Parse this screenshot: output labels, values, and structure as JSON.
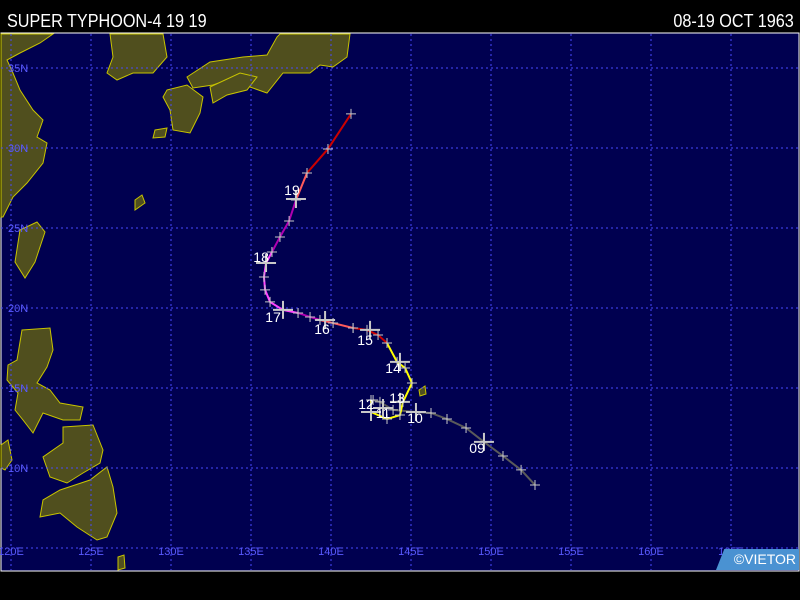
{
  "header": {
    "title": "SUPER TYPHOON-4 19 19",
    "dates": "08-19 OCT 1963"
  },
  "credit": "©VIETOR",
  "colors": {
    "ocean": "#000050",
    "land": "#504f1e",
    "coast": "#c8c400",
    "grid": "#4848ff"
  },
  "map": {
    "lon_range": [
      119.4,
      169.3
    ],
    "lat_range": [
      3.6,
      36.9
    ],
    "lat_labels": [
      {
        "lat": 35,
        "text": "35N"
      },
      {
        "lat": 30,
        "text": "30N"
      },
      {
        "lat": 25,
        "text": "25N"
      },
      {
        "lat": 20,
        "text": "20N"
      },
      {
        "lat": 15,
        "text": "15N"
      },
      {
        "lat": 10,
        "text": "10N"
      }
    ],
    "lon_labels": [
      {
        "lon": 120,
        "text": "120E"
      },
      {
        "lon": 125,
        "text": "125E"
      },
      {
        "lon": 130,
        "text": "130E"
      },
      {
        "lon": 135,
        "text": "135E"
      },
      {
        "lon": 140,
        "text": "140E"
      },
      {
        "lon": 145,
        "text": "145E"
      },
      {
        "lon": 150,
        "text": "150E"
      },
      {
        "lon": 155,
        "text": "155E"
      },
      {
        "lon": 160,
        "text": "160E"
      },
      {
        "lon": 165,
        "text": "165E"
      }
    ],
    "grid_lats": [
      5,
      10,
      15,
      20,
      25,
      30,
      35
    ],
    "grid_lons": [
      120,
      125,
      130,
      135,
      140,
      145,
      150,
      155,
      160,
      165
    ]
  },
  "track": {
    "segments": [
      {
        "color": "#5a5a5a",
        "points": [
          [
            152.75,
            8.94
          ],
          [
            151.88,
            9.88
          ],
          [
            150.75,
            10.75
          ],
          [
            149.56,
            11.63
          ],
          [
            148.44,
            12.5
          ],
          [
            147.25,
            13.06
          ],
          [
            146.25,
            13.44
          ],
          [
            145.31,
            13.5
          ],
          [
            143.88,
            13.63
          ],
          [
            143.06,
            14.13
          ],
          [
            142.63,
            14.25
          ]
        ]
      },
      {
        "color": "#ffff00",
        "points": [
          [
            142.5,
            14.25
          ],
          [
            142.5,
            13.5
          ],
          [
            143.5,
            13.06
          ],
          [
            144.31,
            13.31
          ],
          [
            144.5,
            14.13
          ],
          [
            145.06,
            15.31
          ],
          [
            144.63,
            16.25
          ],
          [
            144.13,
            16.63
          ],
          [
            143.5,
            17.81
          ]
        ]
      },
      {
        "color": "#cc0000",
        "points": [
          [
            143.5,
            17.81
          ],
          [
            142.94,
            18.31
          ],
          [
            142.25,
            18.63
          ],
          [
            141.38,
            18.75
          ]
        ]
      },
      {
        "color": "#ff5a5a",
        "points": [
          [
            141.38,
            18.75
          ],
          [
            140.13,
            19.06
          ],
          [
            139.31,
            19.25
          ]
        ]
      },
      {
        "color": "#b000b0",
        "points": [
          [
            139.31,
            19.25
          ],
          [
            138.69,
            19.44
          ],
          [
            137.94,
            19.69
          ]
        ]
      },
      {
        "color": "#ff44ff",
        "points": [
          [
            137.94,
            19.69
          ],
          [
            137.0,
            19.88
          ],
          [
            136.19,
            20.38
          ],
          [
            135.88,
            21.13
          ],
          [
            135.81,
            21.94
          ],
          [
            135.94,
            22.81
          ],
          [
            136.31,
            23.5
          ]
        ]
      },
      {
        "color": "#b000b0",
        "points": [
          [
            136.31,
            23.5
          ],
          [
            136.81,
            24.44
          ],
          [
            137.38,
            25.44
          ],
          [
            137.81,
            26.75
          ]
        ]
      },
      {
        "color": "#ff5a5a",
        "points": [
          [
            137.81,
            26.75
          ],
          [
            138.5,
            28.44
          ]
        ]
      },
      {
        "color": "#cc0000",
        "points": [
          [
            138.5,
            28.44
          ],
          [
            139.81,
            29.94
          ],
          [
            141.25,
            32.13
          ]
        ]
      }
    ],
    "day_markers": [
      [
        149.56,
        11.63
      ],
      [
        145.31,
        13.5
      ],
      [
        143.25,
        13.75
      ],
      [
        142.5,
        13.5
      ],
      [
        144.31,
        14.13
      ],
      [
        144.31,
        16.63
      ],
      [
        142.44,
        18.63
      ],
      [
        139.63,
        19.25
      ],
      [
        137.0,
        19.88
      ],
      [
        135.94,
        22.81
      ],
      [
        137.81,
        26.81
      ]
    ],
    "day_labels": [
      {
        "text": "09",
        "lon": 149.13,
        "lat": 11.25
      },
      {
        "text": "10",
        "lon": 145.25,
        "lat": 13.13
      },
      {
        "text": "11",
        "lon": 143.25,
        "lat": 13.44
      },
      {
        "text": "12",
        "lon": 142.19,
        "lat": 14.0
      },
      {
        "text": "13",
        "lon": 144.13,
        "lat": 14.38
      },
      {
        "text": "14",
        "lon": 143.88,
        "lat": 16.25
      },
      {
        "text": "15",
        "lon": 142.13,
        "lat": 18.0
      },
      {
        "text": "16",
        "lon": 139.44,
        "lat": 18.69
      },
      {
        "text": "17",
        "lon": 136.38,
        "lat": 19.44
      },
      {
        "text": "18",
        "lon": 135.63,
        "lat": 23.19
      },
      {
        "text": "19",
        "lon": 137.56,
        "lat": 27.38
      }
    ]
  }
}
